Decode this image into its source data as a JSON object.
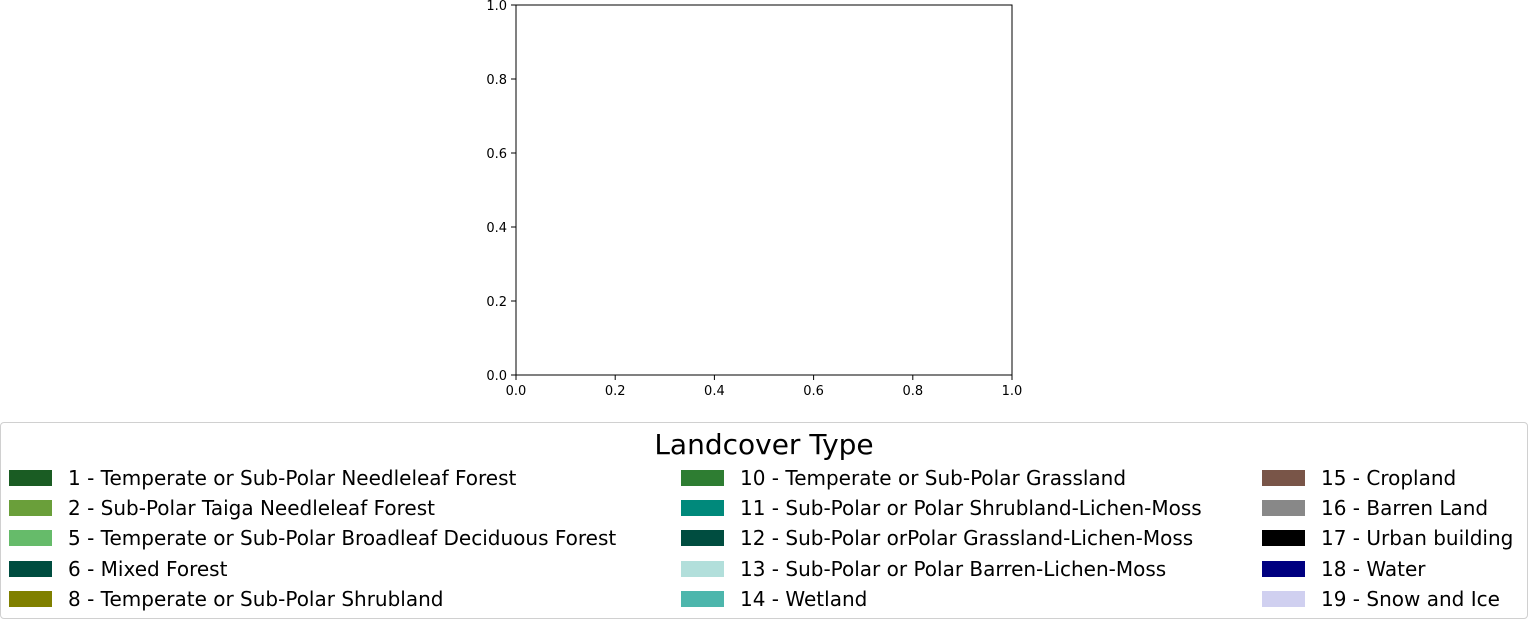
{
  "chart_data": {
    "type": "area",
    "title": "",
    "xlabel": "",
    "ylabel": "",
    "xlim": [
      0.0,
      1.0
    ],
    "ylim": [
      0.0,
      1.0
    ],
    "x_ticks": [
      "0.0",
      "0.2",
      "0.4",
      "0.6",
      "0.8",
      "1.0"
    ],
    "y_ticks": [
      "0.0",
      "0.2",
      "0.4",
      "0.6",
      "0.8",
      "1.0"
    ],
    "grid": false,
    "legend": {
      "title": "Landcover Type",
      "placement": "bottom",
      "columns": [
        [
          {
            "label": "1 - Temperate or Sub-Polar Needleleaf Forest",
            "color": "#1a5c23"
          },
          {
            "label": "2 - Sub-Polar Taiga Needleleaf Forest",
            "color": "#6a9f3a"
          },
          {
            "label": "5 - Temperate or Sub-Polar Broadleaf Deciduous Forest",
            "color": "#66bb6a"
          },
          {
            "label": "6 - Mixed Forest",
            "color": "#004d40"
          },
          {
            "label": "8 - Temperate or Sub-Polar Shrubland",
            "color": "#808000"
          }
        ],
        [
          {
            "label": "10 - Temperate or Sub-Polar Grassland",
            "color": "#2e7d32"
          },
          {
            "label": "11 - Sub-Polar or Polar Shrubland-Lichen-Moss",
            "color": "#00897b"
          },
          {
            "label": "12 - Sub-Polar orPolar Grassland-Lichen-Moss",
            "color": "#004d40"
          },
          {
            "label": "13 - Sub-Polar or Polar Barren-Lichen-Moss",
            "color": "#b2dfdb"
          },
          {
            "label": "14 - Wetland",
            "color": "#4db6ac"
          }
        ],
        [
          {
            "label": "15 - Cropland",
            "color": "#795548"
          },
          {
            "label": "16 - Barren Land",
            "color": "#888888"
          },
          {
            "label": "17 - Urban building",
            "color": "#000000"
          },
          {
            "label": "18 - Water",
            "color": "#000080"
          },
          {
            "label": "19 - Snow and Ice",
            "color": "#d0d0f0"
          }
        ]
      ]
    }
  }
}
